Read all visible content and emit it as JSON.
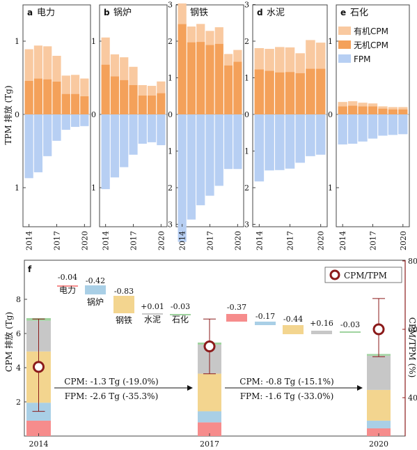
{
  "chart_data": [
    {
      "type": "bar",
      "panel": "a",
      "title": "电力",
      "categories": [
        "2014",
        "2015",
        "2016",
        "2017",
        "2018",
        "2019",
        "2020"
      ],
      "series": [
        {
          "name": "有机CPM",
          "values": [
            0.43,
            0.45,
            0.45,
            0.35,
            0.25,
            0.26,
            0.24
          ]
        },
        {
          "name": "无机CPM",
          "values": [
            0.46,
            0.49,
            0.48,
            0.45,
            0.28,
            0.28,
            0.25
          ]
        },
        {
          "name": "FPM",
          "values": [
            -0.87,
            -0.79,
            -0.57,
            -0.36,
            -0.21,
            -0.17,
            -0.16
          ]
        }
      ]
    },
    {
      "type": "bar",
      "panel": "b",
      "title": "锅炉",
      "categories": [
        "2014",
        "2015",
        "2016",
        "2017",
        "2018",
        "2019",
        "2020"
      ],
      "series": [
        {
          "name": "有机CPM",
          "values": [
            0.37,
            0.3,
            0.31,
            0.25,
            0.14,
            0.13,
            0.16
          ]
        },
        {
          "name": "无机CPM",
          "values": [
            0.68,
            0.52,
            0.47,
            0.4,
            0.26,
            0.26,
            0.29
          ]
        },
        {
          "name": "FPM",
          "values": [
            -1.02,
            -0.86,
            -0.72,
            -0.55,
            -0.4,
            -0.38,
            -0.42
          ]
        }
      ]
    },
    {
      "type": "bar",
      "panel": "c",
      "title": "钢铁",
      "categories": [
        "2014",
        "2015",
        "2016",
        "2017",
        "2018",
        "2019",
        "2020"
      ],
      "series": [
        {
          "name": "有机CPM",
          "values": [
            0.56,
            0.43,
            0.49,
            0.38,
            0.45,
            0.31,
            0.32
          ]
        },
        {
          "name": "无机CPM",
          "values": [
            2.47,
            1.97,
            1.98,
            1.9,
            1.93,
            1.34,
            1.44
          ]
        },
        {
          "name": "FPM",
          "values": [
            -3.48,
            -2.87,
            -2.48,
            -2.22,
            -1.95,
            -1.49,
            -1.49
          ]
        }
      ]
    },
    {
      "type": "bar",
      "panel": "d",
      "title": "水泥",
      "categories": [
        "2014",
        "2015",
        "2016",
        "2017",
        "2018",
        "2019",
        "2020"
      ],
      "series": [
        {
          "name": "有机CPM",
          "values": [
            0.58,
            0.6,
            0.69,
            0.67,
            0.54,
            0.78,
            0.71
          ]
        },
        {
          "name": "无机CPM",
          "values": [
            1.23,
            1.19,
            1.15,
            1.16,
            1.13,
            1.25,
            1.25
          ]
        },
        {
          "name": "FPM",
          "values": [
            -1.83,
            -1.53,
            -1.52,
            -1.48,
            -1.32,
            -1.14,
            -1.1
          ]
        }
      ]
    },
    {
      "type": "bar",
      "panel": "e",
      "title": "石化",
      "categories": [
        "2014",
        "2015",
        "2016",
        "2017",
        "2018",
        "2019",
        "2020"
      ],
      "series": [
        {
          "name": "有机CPM",
          "values": [
            0.06,
            0.06,
            0.05,
            0.04,
            0.03,
            0.03,
            0.03
          ]
        },
        {
          "name": "无机CPM",
          "values": [
            0.11,
            0.12,
            0.11,
            0.11,
            0.08,
            0.07,
            0.07
          ]
        },
        {
          "name": "FPM",
          "values": [
            -0.41,
            -0.4,
            -0.37,
            -0.33,
            -0.29,
            -0.28,
            -0.27
          ]
        }
      ]
    },
    {
      "type": "bar",
      "panel": "f",
      "ylabel": "CPM 排放 (Tg)",
      "ylabel_right": "CPM/TPM (%)",
      "legend": "CPM/TPM",
      "years": [
        "2014",
        "2017",
        "2020"
      ],
      "stacks": [
        {
          "year": "2014",
          "segments": [
            0.9,
            1.05,
            3.0,
            1.8,
            0.15
          ]
        },
        {
          "year": "2017",
          "segments": [
            0.8,
            0.65,
            2.2,
            1.7,
            0.12
          ]
        },
        {
          "year": "2020",
          "segments": [
            0.45,
            0.45,
            1.8,
            2.0,
            0.1
          ]
        }
      ],
      "ratio_points": [
        {
          "year": "2014",
          "value": 49,
          "low": 36,
          "high": 63
        },
        {
          "year": "2017",
          "value": 55,
          "low": 47,
          "high": 63
        },
        {
          "year": "2020",
          "value": 60,
          "low": 52,
          "high": 69
        }
      ],
      "waterfall": [
        {
          "value": "-0.04",
          "label": "电力"
        },
        {
          "value": "-0.42",
          "label": "锅炉"
        },
        {
          "value": "-0.83",
          "label": "钢铁"
        },
        {
          "value": "+0.01",
          "label": "水泥"
        },
        {
          "value": "-0.03",
          "label": "石化"
        },
        {
          "value": "-0.37",
          "label": ""
        },
        {
          "value": "-0.17",
          "label": ""
        },
        {
          "value": "-0.44",
          "label": ""
        },
        {
          "value": "+0.16",
          "label": ""
        },
        {
          "value": "-0.03",
          "label": ""
        }
      ],
      "annotations": [
        {
          "cpm": "CPM: -1.3 Tg (-19.0%)",
          "fpm": "FPM: -2.6 Tg (-35.3%)"
        },
        {
          "cpm": "CPM: -0.8 Tg (-15.1%)",
          "fpm": "FPM: -1.6 Tg (-33.0%)"
        }
      ],
      "yticks_left": [
        "0",
        "2",
        "4",
        "6",
        "8"
      ],
      "yticks_right": [
        "40",
        "60",
        "80"
      ]
    }
  ],
  "legend_top": [
    "有机CPM",
    "无机CPM",
    "FPM"
  ],
  "top_ylabel": "TPM 排放 (Tg)",
  "colors": {
    "organic": "#f9c9a0",
    "inorganic": "#f4a15a",
    "fpm": "#b7cff3",
    "power": "#f68c8c",
    "boiler": "#a9cfe6",
    "steel": "#f3d58f",
    "cement": "#c7c7c7",
    "petro": "#9fd39f",
    "marker": "#8b1a1a"
  }
}
